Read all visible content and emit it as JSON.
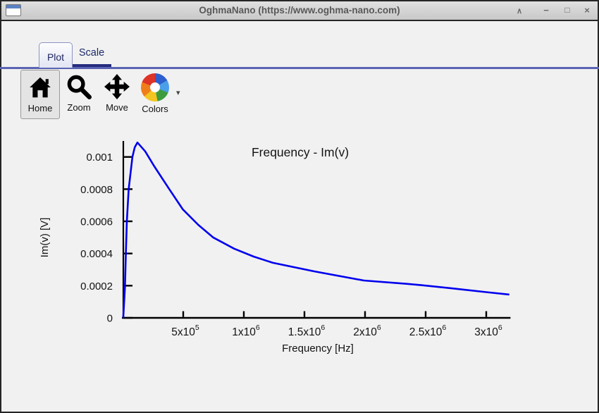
{
  "window": {
    "title": "OghmaNano (https://www.oghma-nano.com)",
    "controls": {
      "shade": "∧",
      "minimize": "−",
      "maximize": "□",
      "close": "×"
    }
  },
  "tabs": [
    {
      "label": "Plot",
      "active": true
    },
    {
      "label": "Scale",
      "active": false
    }
  ],
  "toolbar": {
    "buttons": [
      {
        "label": "Home",
        "icon": "home-icon",
        "selected": true
      },
      {
        "label": "Zoom",
        "icon": "zoom-icon",
        "selected": false
      },
      {
        "label": "Move",
        "icon": "move-icon",
        "selected": false
      },
      {
        "label": "Colors",
        "icon": "colors-icon",
        "selected": false
      }
    ],
    "colors_dropdown_icon": "▾"
  },
  "chart_data": {
    "type": "line",
    "title": "Frequency - Im(v)",
    "xlabel": "Frequency [Hz]",
    "ylabel": "Im(v) [V]",
    "xlim": [
      0,
      3200000
    ],
    "ylim": [
      0,
      0.0011
    ],
    "grid": false,
    "legend": "none",
    "line_color": "#0000ee",
    "axis_color": "#000000",
    "x_ticks": [
      {
        "mantissa": "5x10",
        "exponent": "5",
        "value": 500000
      },
      {
        "mantissa": "1x10",
        "exponent": "6",
        "value": 1000000
      },
      {
        "mantissa": "1.5x10",
        "exponent": "6",
        "value": 1500000
      },
      {
        "mantissa": "2x10",
        "exponent": "6",
        "value": 2000000
      },
      {
        "mantissa": "2.5x10",
        "exponent": "6",
        "value": 2500000
      },
      {
        "mantissa": "3x10",
        "exponent": "6",
        "value": 3000000
      }
    ],
    "y_ticks": [
      {
        "label": "0",
        "value": 0
      },
      {
        "label": "0.0002",
        "value": 0.0002
      },
      {
        "label": "0.0004",
        "value": 0.0004
      },
      {
        "label": "0.0006",
        "value": 0.0006
      },
      {
        "label": "0.0008",
        "value": 0.0008
      },
      {
        "label": "0.001",
        "value": 0.001
      }
    ],
    "series": [
      {
        "name": "Im(v)",
        "points": [
          [
            5000,
            0.0
          ],
          [
            19000,
            0.00019
          ],
          [
            27000,
            0.0004
          ],
          [
            35000,
            0.0006
          ],
          [
            50000,
            0.0008
          ],
          [
            81000,
            0.001
          ],
          [
            100000,
            0.00106
          ],
          [
            122000,
            0.00109
          ],
          [
            186000,
            0.001035
          ],
          [
            263000,
            0.00094
          ],
          [
            380000,
            0.000805
          ],
          [
            496000,
            0.000675
          ],
          [
            624000,
            0.000578
          ],
          [
            746000,
            0.0005
          ],
          [
            920000,
            0.00043
          ],
          [
            1080000,
            0.000381
          ],
          [
            1240000,
            0.000342
          ],
          [
            1580000,
            0.000289
          ],
          [
            1990000,
            0.000232
          ],
          [
            2350000,
            0.000211
          ],
          [
            2470000,
            0.000203
          ],
          [
            2760000,
            0.00018
          ],
          [
            3000000,
            0.00016
          ],
          [
            3190000,
            0.000145
          ]
        ]
      }
    ]
  }
}
